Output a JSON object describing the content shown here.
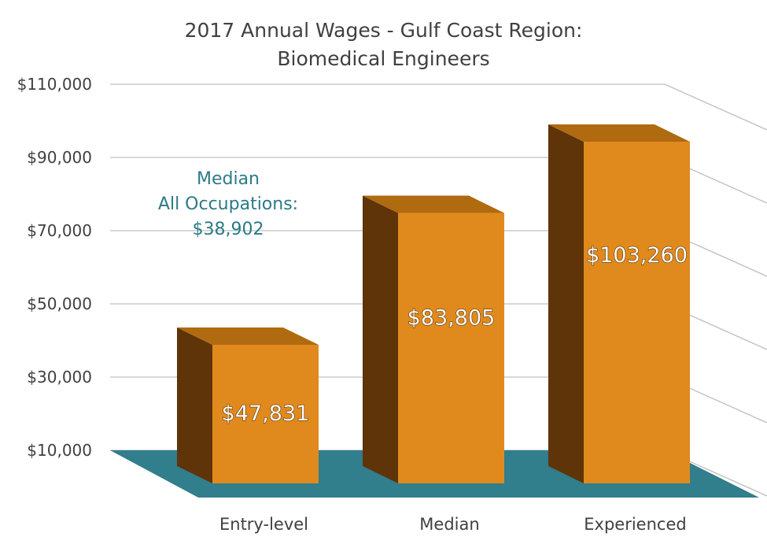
{
  "chart_data": {
    "type": "bar",
    "title_line1": "2017 Annual Wages - Gulf Coast Region:",
    "title_line2": "Biomedical Engineers",
    "categories": [
      "Entry-level",
      "Median",
      "Experienced"
    ],
    "values": [
      47831,
      83805,
      103260
    ],
    "data_labels": [
      "$47,831",
      "$83,805",
      "$103,260"
    ],
    "y_ticks": [
      {
        "value": 10000,
        "label": "$10,000"
      },
      {
        "value": 30000,
        "label": "$30,000"
      },
      {
        "value": 50000,
        "label": "$50,000"
      },
      {
        "value": 70000,
        "label": "$70,000"
      },
      {
        "value": 90000,
        "label": "$90,000"
      },
      {
        "value": 110000,
        "label": "$110,000"
      }
    ],
    "ylim": [
      10000,
      110000
    ],
    "grid": true,
    "style": "3d-column",
    "annotation": {
      "line1": "Median",
      "line2": "All Occupations:",
      "line3": "$38,902"
    },
    "colors": {
      "bar_front": "#e08a1e",
      "bar_side": "#5e3408",
      "bar_top": "#b06a10",
      "floor": "#317e8c",
      "annotation": "#2b7a86",
      "gridline": "#bfbfbf"
    }
  }
}
